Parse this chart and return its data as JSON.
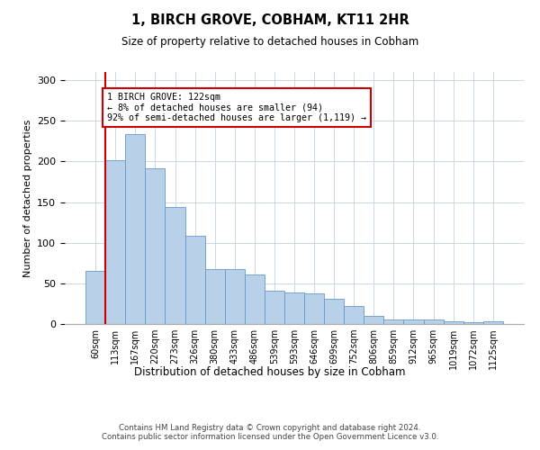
{
  "title": "1, BIRCH GROVE, COBHAM, KT11 2HR",
  "subtitle": "Size of property relative to detached houses in Cobham",
  "xlabel": "Distribution of detached houses by size in Cobham",
  "ylabel": "Number of detached properties",
  "categories": [
    "60sqm",
    "113sqm",
    "167sqm",
    "220sqm",
    "273sqm",
    "326sqm",
    "380sqm",
    "433sqm",
    "486sqm",
    "539sqm",
    "593sqm",
    "646sqm",
    "699sqm",
    "752sqm",
    "806sqm",
    "859sqm",
    "912sqm",
    "965sqm",
    "1019sqm",
    "1072sqm",
    "1125sqm"
  ],
  "values": [
    65,
    202,
    234,
    192,
    144,
    109,
    68,
    67,
    61,
    41,
    39,
    38,
    31,
    22,
    10,
    6,
    5,
    5,
    3,
    2,
    3
  ],
  "bar_color": "#b8d0e8",
  "bar_edge_color": "#6699cc",
  "ylim": [
    0,
    310
  ],
  "yticks": [
    0,
    50,
    100,
    150,
    200,
    250,
    300
  ],
  "property_line_color": "#cc0000",
  "annotation_text": "1 BIRCH GROVE: 122sqm\n← 8% of detached houses are smaller (94)\n92% of semi-detached houses are larger (1,119) →",
  "annotation_box_color": "#cc0000",
  "footer_line1": "Contains HM Land Registry data © Crown copyright and database right 2024.",
  "footer_line2": "Contains public sector information licensed under the Open Government Licence v3.0.",
  "background_color": "#ffffff",
  "grid_color": "#c8d8e8"
}
